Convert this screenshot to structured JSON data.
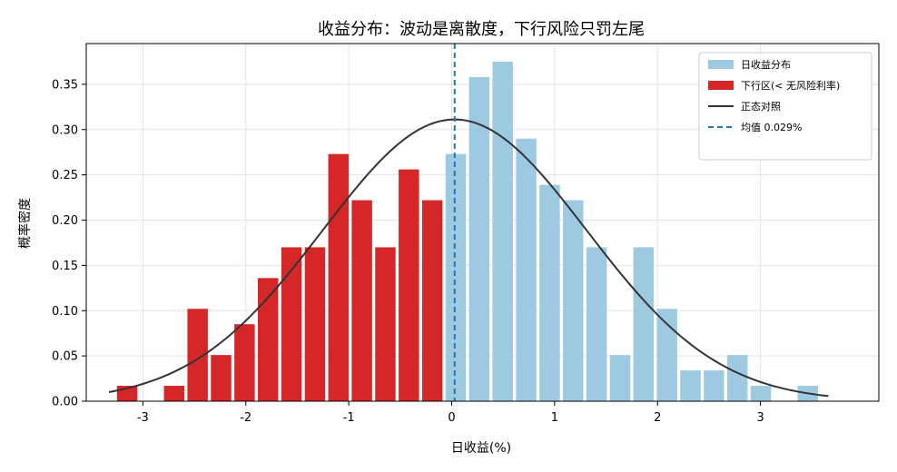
{
  "chart_data": {
    "type": "bar",
    "title": "收益分布：波动是离散度，下行风险只罚左尾",
    "xlabel": "日收益(%)",
    "ylabel": "概率密度",
    "xlim": [
      -3.55,
      4.15
    ],
    "ylim": [
      0,
      0.395
    ],
    "xticks": [
      -3,
      -2,
      -1,
      0,
      1,
      2,
      3
    ],
    "xtick_labels": [
      "-3",
      "-2",
      "-1",
      "0",
      "1",
      "2",
      "3"
    ],
    "yticks": [
      0.0,
      0.05,
      0.1,
      0.15,
      0.2,
      0.25,
      0.3,
      0.35
    ],
    "ytick_labels": [
      "0.00",
      "0.05",
      "0.10",
      "0.15",
      "0.20",
      "0.25",
      "0.30",
      "0.35"
    ],
    "grid": true,
    "legend_position": "top-right",
    "bin_width": 0.228,
    "series": [
      {
        "name": "日收益分布",
        "kind": "bar",
        "color": "#9ecae1",
        "bins": [
          {
            "x": 0.04,
            "y": 0.273
          },
          {
            "x": 0.268,
            "y": 0.358
          },
          {
            "x": 0.496,
            "y": 0.375
          },
          {
            "x": 0.724,
            "y": 0.29
          },
          {
            "x": 0.952,
            "y": 0.239
          },
          {
            "x": 1.18,
            "y": 0.222
          },
          {
            "x": 1.408,
            "y": 0.17
          },
          {
            "x": 1.636,
            "y": 0.051
          },
          {
            "x": 1.864,
            "y": 0.17
          },
          {
            "x": 2.092,
            "y": 0.102
          },
          {
            "x": 2.32,
            "y": 0.034
          },
          {
            "x": 2.548,
            "y": 0.034
          },
          {
            "x": 2.776,
            "y": 0.051
          },
          {
            "x": 3.004,
            "y": 0.017
          },
          {
            "x": 3.46,
            "y": 0.017
          }
        ]
      },
      {
        "name": "下行区(< 无风险利率)",
        "kind": "bar",
        "color": "#d62728",
        "bins": [
          {
            "x": -3.152,
            "y": 0.017
          },
          {
            "x": -2.696,
            "y": 0.017
          },
          {
            "x": -2.468,
            "y": 0.102
          },
          {
            "x": -2.24,
            "y": 0.051
          },
          {
            "x": -2.012,
            "y": 0.085
          },
          {
            "x": -1.784,
            "y": 0.136
          },
          {
            "x": -1.556,
            "y": 0.17
          },
          {
            "x": -1.328,
            "y": 0.17
          },
          {
            "x": -1.1,
            "y": 0.273
          },
          {
            "x": -0.872,
            "y": 0.222
          },
          {
            "x": -0.644,
            "y": 0.17
          },
          {
            "x": -0.416,
            "y": 0.256
          },
          {
            "x": -0.188,
            "y": 0.222
          }
        ]
      },
      {
        "name": "正态对照",
        "kind": "line",
        "color": "#333333",
        "mean": 0.029,
        "std": 1.282,
        "x_range": [
          -3.33,
          3.66
        ]
      },
      {
        "name": "均值 0.029%",
        "kind": "vline",
        "color": "#1f77b4",
        "x": 0.029
      }
    ]
  }
}
